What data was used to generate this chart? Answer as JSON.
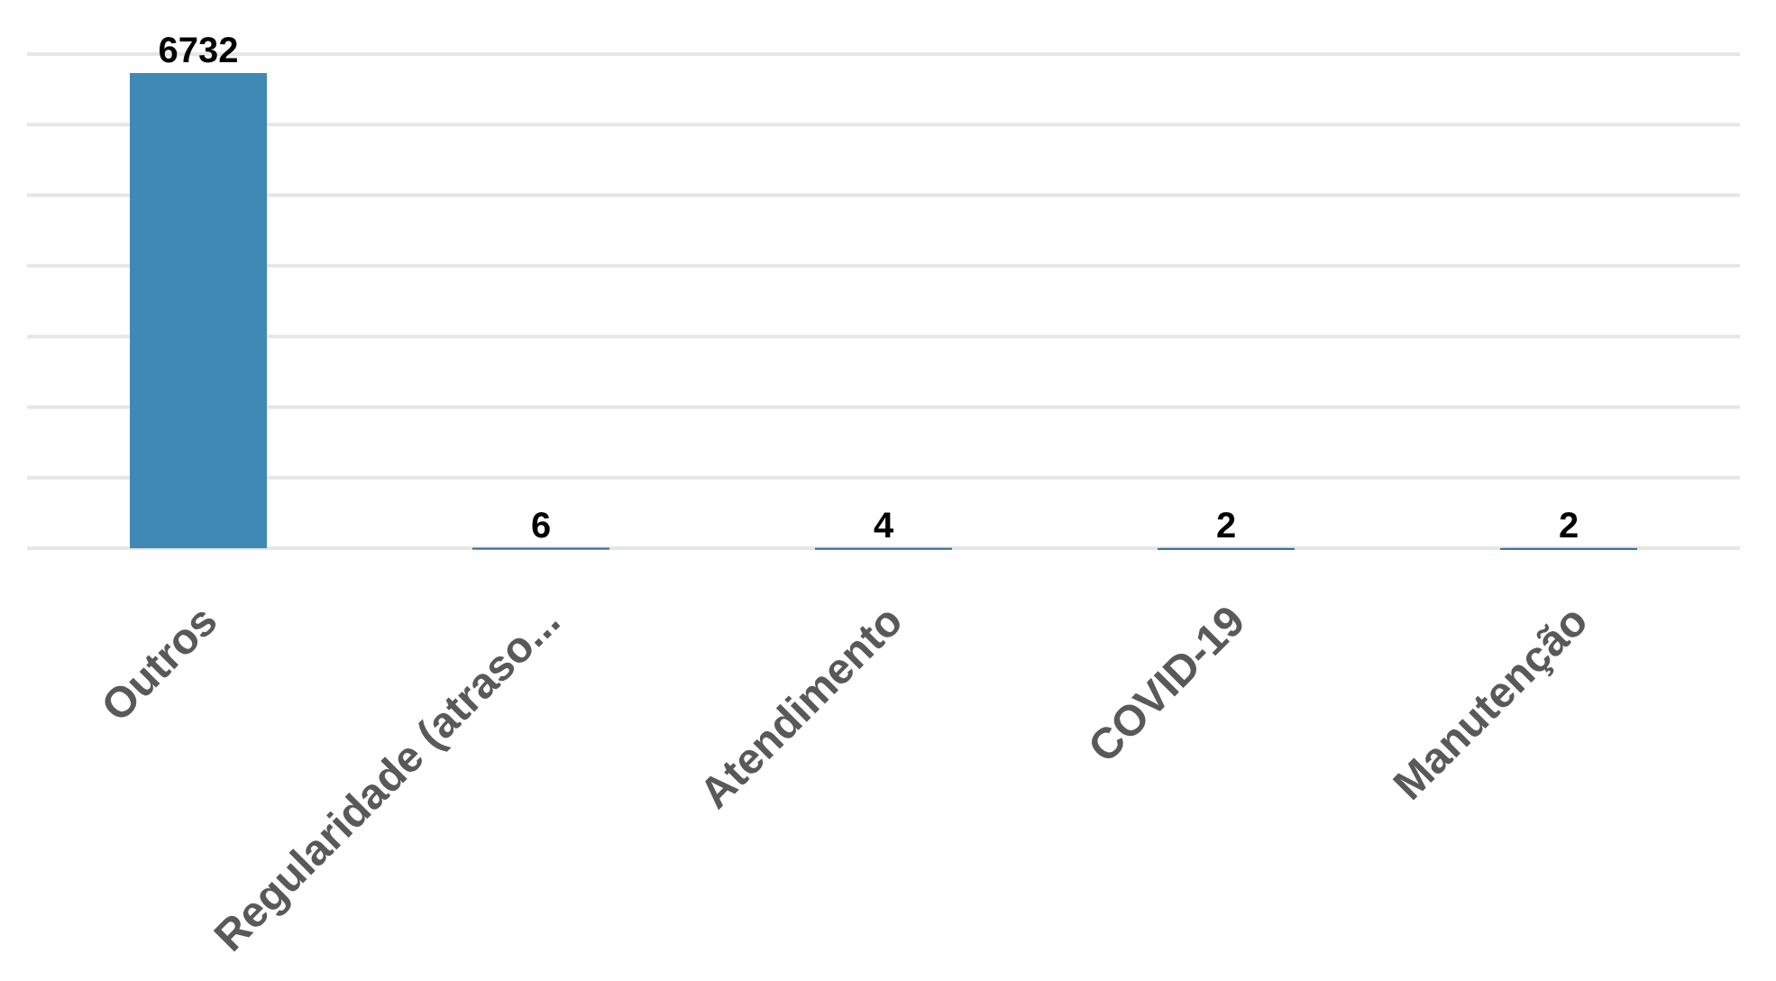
{
  "chart_data": {
    "type": "bar",
    "categories": [
      "Outros",
      "Regularidade (atraso...",
      "Atendimento",
      "COVID-19",
      "Manutenção"
    ],
    "values": [
      6732,
      6,
      4,
      2,
      2
    ],
    "colors": [
      "#3f8ab5",
      "#2e6a8e",
      "#2e6a8e",
      "#2e6a8e",
      "#2e6a8e"
    ],
    "ylim": [
      0,
      7000
    ],
    "yticks": [
      {
        "value": 0,
        "label": null
      },
      {
        "value": 1000,
        "label": null
      },
      {
        "value": 2000,
        "label": null
      },
      {
        "value": 3000,
        "label": null
      },
      {
        "value": 4000,
        "label": null
      },
      {
        "value": 5000,
        "label": null
      },
      {
        "value": 6000,
        "label": null
      },
      {
        "value": 7000,
        "label": null
      }
    ],
    "grid": "y",
    "data_labels": true
  }
}
